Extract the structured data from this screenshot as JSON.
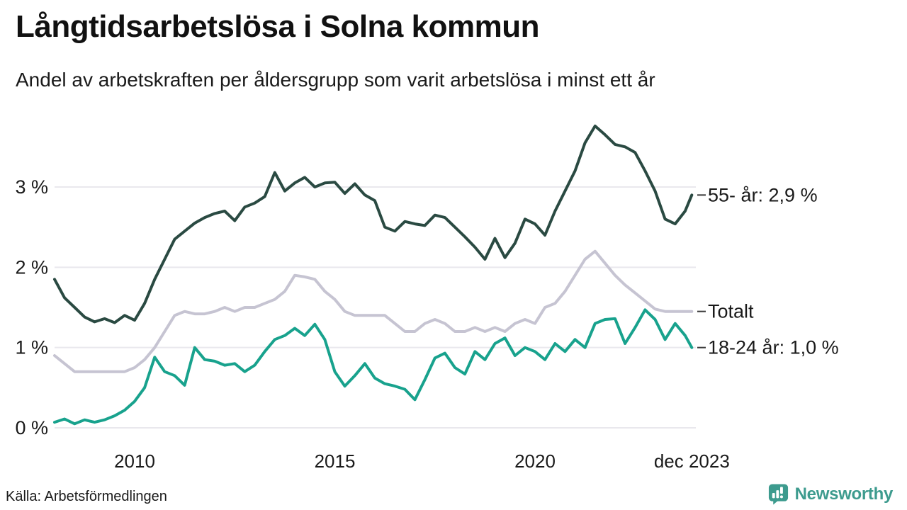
{
  "chart_data": {
    "type": "line",
    "title": "Långtidsarbetslösa i Solna kommun",
    "subtitle": "Andel av arbetskraften per åldersgrupp som varit arbetslösa i minst ett år",
    "grid": true,
    "legend_position": "right-end-labels",
    "background": "#ffffff",
    "gridline_color": "#e9e8ed",
    "text_color": "#1a1a1a",
    "tick_dash_color": "#3a3a3a",
    "xlim": [
      2008.0,
      2023.917
    ],
    "ylim": [
      0,
      3.9
    ],
    "y_axis": {
      "ticks": [
        {
          "label": "0 %",
          "value": 0
        },
        {
          "label": "1 %",
          "value": 1
        },
        {
          "label": "2 %",
          "value": 2
        },
        {
          "label": "3 %",
          "value": 3
        }
      ]
    },
    "x_axis": {
      "ticks": [
        {
          "label": "2010",
          "year": 2010
        },
        {
          "label": "2015",
          "year": 2015
        },
        {
          "label": "2020",
          "year": 2020
        },
        {
          "label": "dec 2023",
          "year": 2023.917
        }
      ]
    },
    "x": [
      2008.0,
      2008.25,
      2008.5,
      2008.75,
      2009.0,
      2009.25,
      2009.5,
      2009.75,
      2010.0,
      2010.25,
      2010.5,
      2010.75,
      2011.0,
      2011.25,
      2011.5,
      2011.75,
      2012.0,
      2012.25,
      2012.5,
      2012.75,
      2013.0,
      2013.25,
      2013.5,
      2013.75,
      2014.0,
      2014.25,
      2014.5,
      2014.75,
      2015.0,
      2015.25,
      2015.5,
      2015.75,
      2016.0,
      2016.25,
      2016.5,
      2016.75,
      2017.0,
      2017.25,
      2017.5,
      2017.75,
      2018.0,
      2018.25,
      2018.5,
      2018.75,
      2019.0,
      2019.25,
      2019.5,
      2019.75,
      2020.0,
      2020.25,
      2020.5,
      2020.75,
      2021.0,
      2021.25,
      2021.5,
      2021.75,
      2022.0,
      2022.25,
      2022.5,
      2022.75,
      2023.0,
      2023.25,
      2023.5,
      2023.75,
      2023.917
    ],
    "series": [
      {
        "name": "55- år",
        "end_label": "55- år: 2,9 %",
        "end_value_text": "2,9 %",
        "color": "#2a4a42",
        "values": [
          1.85,
          1.62,
          1.5,
          1.38,
          1.32,
          1.36,
          1.31,
          1.4,
          1.34,
          1.55,
          1.85,
          2.1,
          2.35,
          2.45,
          2.55,
          2.62,
          2.67,
          2.7,
          2.58,
          2.75,
          2.8,
          2.88,
          3.18,
          2.95,
          3.05,
          3.12,
          3.0,
          3.05,
          3.06,
          2.92,
          3.04,
          2.9,
          2.83,
          2.5,
          2.45,
          2.57,
          2.54,
          2.52,
          2.65,
          2.62,
          2.5,
          2.38,
          2.25,
          2.1,
          2.36,
          2.12,
          2.3,
          2.6,
          2.54,
          2.4,
          2.7,
          2.95,
          3.2,
          3.55,
          3.76,
          3.65,
          3.53,
          3.5,
          3.43,
          3.2,
          2.95,
          2.6,
          2.54,
          2.7,
          2.9
        ]
      },
      {
        "name": "Totalt",
        "end_label": "Totalt",
        "end_value_text": "",
        "color": "#c6c4d2",
        "values": [
          0.9,
          0.8,
          0.7,
          0.7,
          0.7,
          0.7,
          0.7,
          0.7,
          0.75,
          0.85,
          1.0,
          1.2,
          1.4,
          1.45,
          1.42,
          1.42,
          1.45,
          1.5,
          1.45,
          1.5,
          1.5,
          1.55,
          1.6,
          1.7,
          1.9,
          1.88,
          1.85,
          1.7,
          1.6,
          1.45,
          1.4,
          1.4,
          1.4,
          1.4,
          1.3,
          1.2,
          1.2,
          1.3,
          1.35,
          1.3,
          1.2,
          1.2,
          1.25,
          1.2,
          1.25,
          1.2,
          1.3,
          1.35,
          1.3,
          1.5,
          1.55,
          1.7,
          1.9,
          2.1,
          2.2,
          2.05,
          1.9,
          1.78,
          1.68,
          1.58,
          1.48,
          1.45,
          1.45,
          1.45,
          1.45
        ]
      },
      {
        "name": "18-24 år",
        "end_label": "18-24 år: 1,0 %",
        "end_value_text": "1,0 %",
        "color": "#18a28d",
        "values": [
          0.07,
          0.11,
          0.05,
          0.1,
          0.07,
          0.1,
          0.15,
          0.22,
          0.33,
          0.5,
          0.88,
          0.7,
          0.65,
          0.53,
          1.0,
          0.85,
          0.83,
          0.78,
          0.8,
          0.7,
          0.78,
          0.95,
          1.1,
          1.15,
          1.24,
          1.15,
          1.29,
          1.1,
          0.7,
          0.52,
          0.65,
          0.8,
          0.62,
          0.55,
          0.52,
          0.48,
          0.35,
          0.6,
          0.87,
          0.93,
          0.75,
          0.67,
          0.95,
          0.85,
          1.05,
          1.12,
          0.9,
          1.0,
          0.95,
          0.85,
          1.05,
          0.95,
          1.1,
          1.0,
          1.3,
          1.35,
          1.36,
          1.05,
          1.25,
          1.47,
          1.35,
          1.1,
          1.3,
          1.15,
          1.0
        ]
      }
    ]
  },
  "footer": {
    "source": "Källa: Arbetsförmedlingen",
    "brand": "Newsworthy",
    "brand_icon": "bar-chart-bubble-icon",
    "brand_color": "#3d9b8e"
  }
}
